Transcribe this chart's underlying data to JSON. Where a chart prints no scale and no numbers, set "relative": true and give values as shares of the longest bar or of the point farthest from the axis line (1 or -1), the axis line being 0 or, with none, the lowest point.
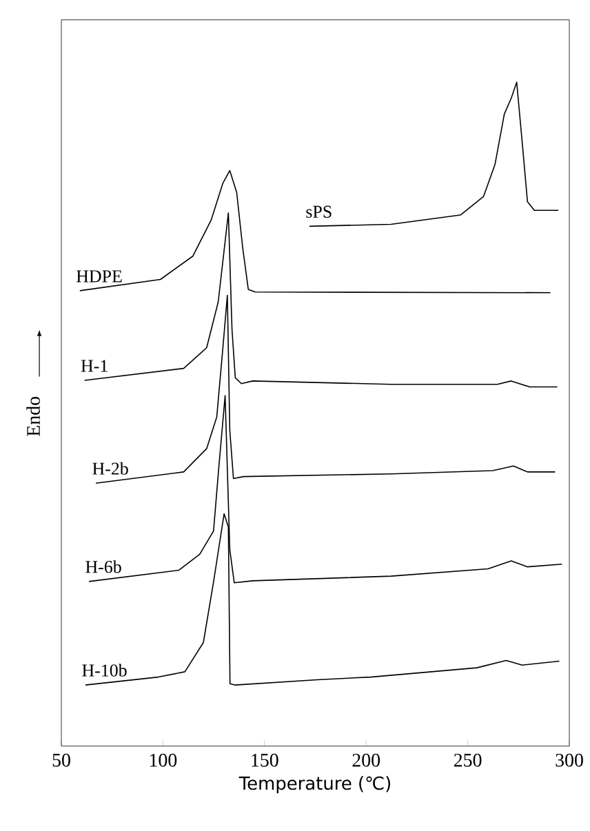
{
  "chart_data": {
    "type": "line",
    "relative": true,
    "xlabel": "Temperature (℃)",
    "ylabel": "Endo",
    "xlim": [
      50,
      300
    ],
    "xticks": [
      50,
      100,
      150,
      200,
      250,
      300
    ],
    "series": [
      {
        "name": "sPS",
        "color": "#000000",
        "x": [
          172.1,
          212.3,
          246.4,
          257.8,
          263.4,
          268.0,
          271.4,
          274.1,
          277.0,
          279.4,
          282.8,
          294.6
        ],
        "values": [
          0.783,
          0.786,
          0.8,
          0.828,
          0.876,
          0.952,
          0.976,
          1.0,
          0.903,
          0.82,
          0.807,
          0.807
        ]
      },
      {
        "name": "HDPE",
        "color": "#000000",
        "x": [
          59.1,
          98.8,
          114.7,
          123.8,
          129.5,
          132.9,
          136.3,
          139.2,
          142.0,
          145.4,
          290.7
        ],
        "values": [
          0.686,
          0.703,
          0.738,
          0.793,
          0.848,
          0.867,
          0.834,
          0.752,
          0.688,
          0.684,
          0.683
        ]
      },
      {
        "name": "H-1",
        "color": "#000000",
        "x": [
          61.4,
          110.2,
          121.5,
          127.2,
          132.2,
          134.0,
          135.6,
          138.6,
          144.2,
          212.3,
          264.6,
          271.4,
          280.5,
          294.1
        ],
        "values": [
          0.551,
          0.569,
          0.6,
          0.669,
          0.803,
          0.627,
          0.555,
          0.546,
          0.55,
          0.545,
          0.545,
          0.55,
          0.541,
          0.541
        ]
      },
      {
        "name": "H-2b",
        "color": "#000000",
        "x": [
          67.0,
          110.2,
          121.5,
          126.5,
          129.5,
          131.7,
          132.9,
          134.7,
          139.7,
          212.3,
          262.3,
          272.5,
          279.4,
          293.0
        ],
        "values": [
          0.396,
          0.413,
          0.448,
          0.496,
          0.6,
          0.679,
          0.476,
          0.403,
          0.406,
          0.41,
          0.415,
          0.422,
          0.413,
          0.413
        ]
      },
      {
        "name": "H-6b",
        "color": "#000000",
        "x": [
          63.6,
          107.9,
          118.1,
          124.9,
          127.5,
          130.6,
          132.9,
          135.1,
          144.2,
          212.3,
          260.0,
          271.4,
          279.4,
          296.4
        ],
        "values": [
          0.248,
          0.265,
          0.289,
          0.324,
          0.42,
          0.528,
          0.296,
          0.246,
          0.249,
          0.256,
          0.267,
          0.279,
          0.27,
          0.274
        ]
      },
      {
        "name": "H-10b",
        "color": "#000000",
        "x": [
          61.9,
          97.7,
          110.8,
          119.9,
          125.1,
          130.1,
          132.2,
          133.0,
          135.6,
          176.0,
          202.2,
          254.5,
          268.9,
          276.8,
          295.1
        ],
        "values": [
          0.092,
          0.104,
          0.112,
          0.156,
          0.251,
          0.35,
          0.33,
          0.094,
          0.092,
          0.1,
          0.104,
          0.118,
          0.129,
          0.122,
          0.128
        ]
      }
    ]
  }
}
